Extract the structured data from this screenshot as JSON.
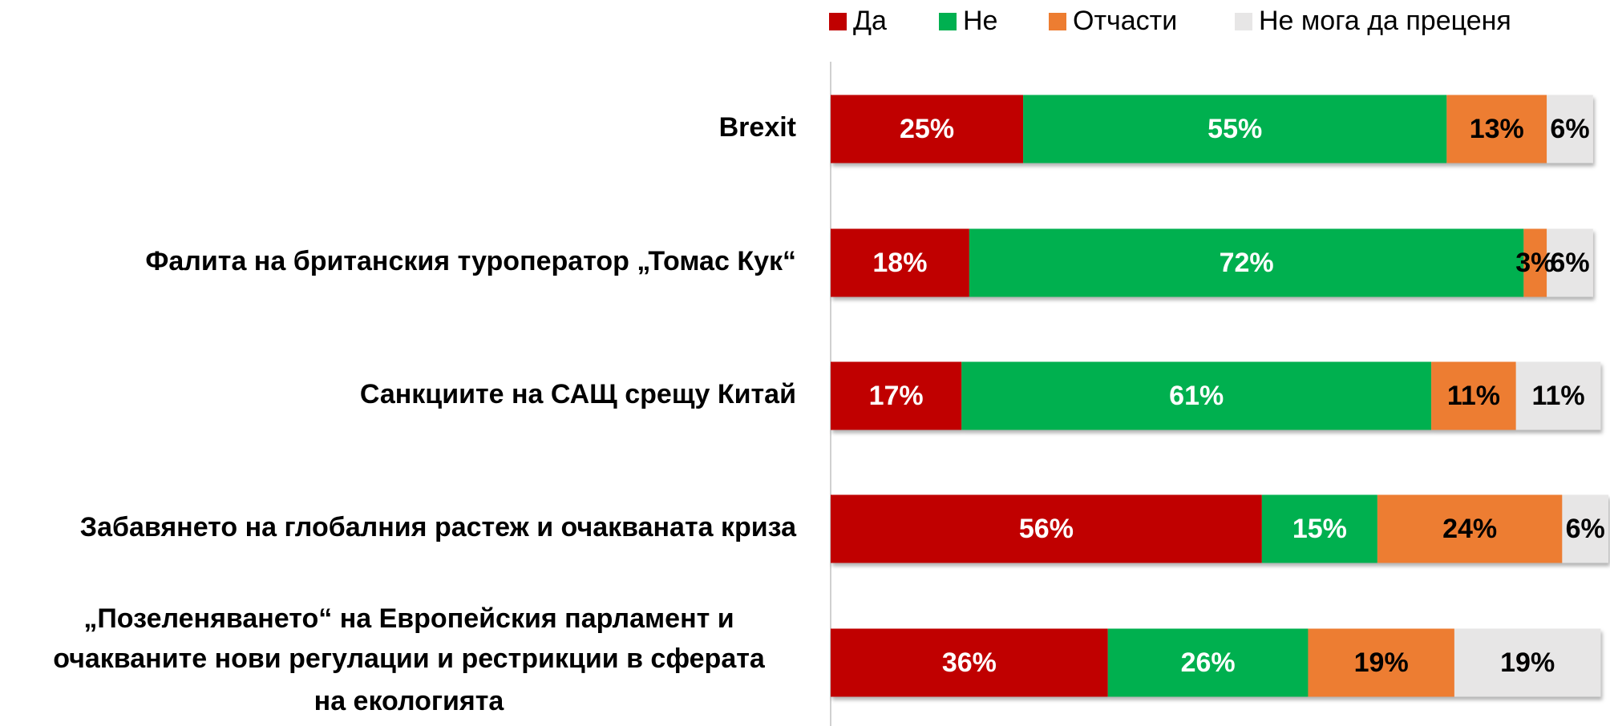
{
  "chart_data": {
    "type": "stacked-bar",
    "orientation": "horizontal",
    "categories": [
      "Brexit",
      "Фалита на британския туроператор „Томас Кук“",
      "Санкциите на САЩ срещу Китай",
      "Забавянето на глобалния растеж и очакваната криза",
      [
        "„Позеленяването“ на Европейския  парламент и",
        "очакваните нови регулации и рестрикции в сферата",
        "на екологията"
      ]
    ],
    "series": [
      {
        "name": "Да",
        "color": "#c00000",
        "label_color": "#ffffff",
        "values": [
          25,
          18,
          17,
          56,
          36
        ],
        "value_labels": [
          "25%",
          "18%",
          "17%",
          "56%",
          "36%"
        ]
      },
      {
        "name": "Не",
        "color": "#00b050",
        "label_color": "#ffffff",
        "values": [
          55,
          72,
          61,
          15,
          26
        ],
        "value_labels": [
          "55%",
          "72%",
          "61%",
          "15%",
          "26%"
        ]
      },
      {
        "name": "Отчасти",
        "color": "#ed7d31",
        "label_color": "#000000",
        "values": [
          13,
          3,
          11,
          24,
          19
        ],
        "value_labels": [
          "13%",
          "3%",
          "11%",
          "24%",
          "19%"
        ]
      },
      {
        "name": "Не мога да преценя",
        "color": "#e7e6e6",
        "label_color": "#000000",
        "values": [
          6,
          6,
          11,
          6,
          19
        ],
        "value_labels": [
          "6%",
          "6%",
          "11%",
          "6%",
          "19%"
        ]
      }
    ],
    "xlim": [
      0,
      101
    ],
    "legend": "top"
  }
}
